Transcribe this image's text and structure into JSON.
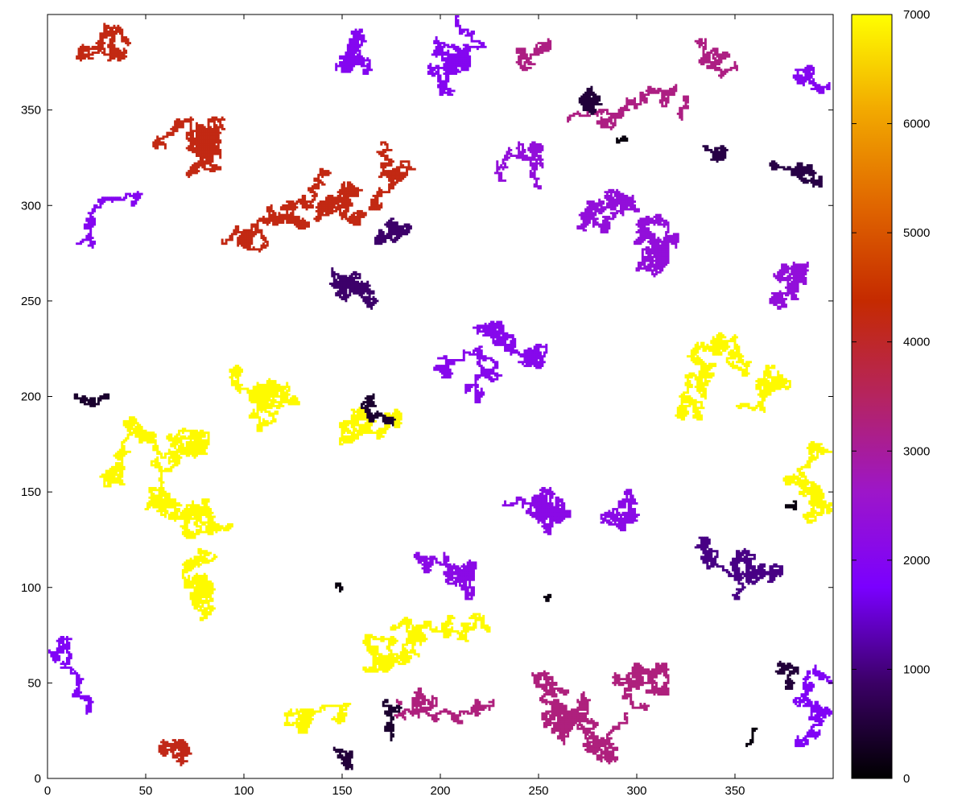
{
  "chart_data": {
    "type": "heatmap",
    "title": "",
    "xlabel": "",
    "ylabel": "",
    "xlim": [
      0,
      400
    ],
    "ylim": [
      0,
      400
    ],
    "x_ticks": [
      0,
      50,
      100,
      150,
      200,
      250,
      300,
      350
    ],
    "y_ticks": [
      0,
      50,
      100,
      150,
      200,
      250,
      300,
      350
    ],
    "colorbar": {
      "range": [
        0,
        7000
      ],
      "ticks": [
        0,
        1000,
        2000,
        3000,
        4000,
        5000,
        6000,
        7000
      ],
      "palette": [
        "#000000",
        "#3b0066",
        "#7a00ff",
        "#9d16c9",
        "#b5245f",
        "#c52a00",
        "#e06600",
        "#f2a900",
        "#ffff00"
      ]
    },
    "grid": false,
    "legend": "colorbar-right",
    "clusters": [
      {
        "value": 6950,
        "seeds": [
          [
            90,
            130,
            2200
          ],
          [
            170,
            60,
            1400
          ],
          [
            120,
            200,
            1200
          ],
          [
            30,
            160,
            900
          ],
          [
            75,
            90,
            1000
          ],
          [
            150,
            175,
            700
          ],
          [
            130,
            30,
            400
          ]
        ]
      },
      {
        "value": 6950,
        "seeds": [
          [
            330,
            195,
            1300
          ],
          [
            385,
            160,
            800
          ],
          [
            370,
            215,
            500
          ]
        ]
      },
      {
        "value": 4200,
        "seeds": [
          [
            60,
            330,
            1500
          ],
          [
            90,
            280,
            1100
          ],
          [
            140,
            300,
            900
          ],
          [
            40,
            385,
            600
          ],
          [
            170,
            300,
            500
          ]
        ]
      },
      {
        "value": 4150,
        "seeds": [
          [
            65,
            20,
            350
          ]
        ]
      },
      {
        "value": 2150,
        "seeds": [
          [
            250,
            145,
            1400
          ],
          [
            205,
            110,
            900
          ],
          [
            290,
            135,
            500
          ]
        ]
      },
      {
        "value": 2050,
        "seeds": [
          [
            250,
            225,
            900
          ],
          [
            220,
            200,
            500
          ]
        ]
      },
      {
        "value": 2350,
        "seeds": [
          [
            320,
            280,
            1300
          ],
          [
            280,
            300,
            900
          ],
          [
            380,
            270,
            700
          ],
          [
            250,
            310,
            400
          ]
        ]
      },
      {
        "value": 2000,
        "seeds": [
          [
            200,
            365,
            1200
          ],
          [
            160,
            375,
            600
          ]
        ]
      },
      {
        "value": 2000,
        "seeds": [
          [
            15,
            280,
            300
          ],
          [
            395,
            360,
            250
          ]
        ]
      },
      {
        "value": 1900,
        "seeds": [
          [
            20,
            35,
            350
          ],
          [
            385,
            20,
            400
          ],
          [
            390,
            55,
            200
          ]
        ]
      },
      {
        "value": 3250,
        "seeds": [
          [
            265,
            45,
            1300
          ],
          [
            310,
            45,
            800
          ],
          [
            225,
            40,
            500
          ],
          [
            280,
            15,
            400
          ]
        ]
      },
      {
        "value": 3200,
        "seeds": [
          [
            320,
            360,
            500
          ],
          [
            250,
            385,
            300
          ],
          [
            350,
            375,
            300
          ]
        ]
      },
      {
        "value": 1050,
        "seeds": [
          [
            370,
            105,
            600
          ],
          [
            350,
            110,
            300
          ]
        ]
      },
      {
        "value": 900,
        "seeds": [
          [
            160,
            260,
            600
          ],
          [
            170,
            285,
            300
          ]
        ]
      },
      {
        "value": 600,
        "seeds": [
          [
            370,
            320,
            400
          ],
          [
            345,
            330,
            200
          ]
        ]
      },
      {
        "value": 500,
        "seeds": [
          [
            275,
            360,
            300
          ],
          [
            375,
            55,
            150
          ],
          [
            150,
            15,
            150
          ]
        ]
      },
      {
        "value": 400,
        "seeds": [
          [
            165,
            200,
            200
          ],
          [
            30,
            200,
            120
          ],
          [
            175,
            20,
            150
          ]
        ]
      },
      {
        "value": 120,
        "seeds": [
          [
            380,
            145,
            30
          ],
          [
            290,
            335,
            30
          ],
          [
            255,
            95,
            15
          ],
          [
            150,
            100,
            20
          ],
          [
            360,
            25,
            25
          ]
        ]
      }
    ]
  }
}
